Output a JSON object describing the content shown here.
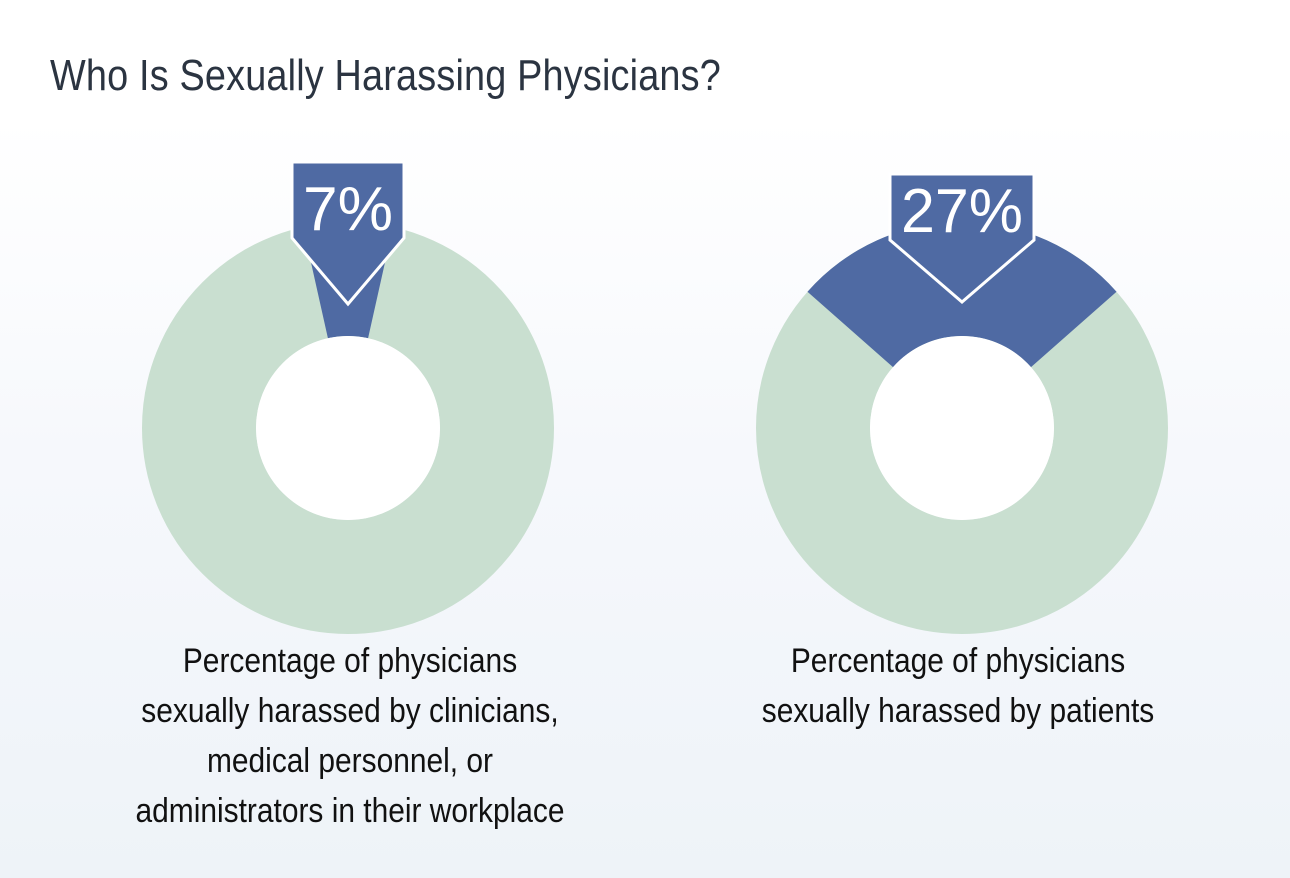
{
  "header": {
    "title": "Who Is Sexually Harassing Physicians?"
  },
  "colors": {
    "highlight": "#4f6aa3",
    "remainder": "#c9dfd0",
    "hole": "#ffffff",
    "label_text": "#ffffff",
    "title_text": "#2b3441",
    "caption_text": "#111111"
  },
  "chart_data": [
    {
      "type": "pie",
      "title": "",
      "values": [
        7,
        93
      ],
      "highlight_value": 7,
      "value_label": "7%",
      "caption_lines": [
        "Percentage of physicians",
        "sexually harassed by clinicians,",
        "medical personnel, or",
        "administrators in their workplace"
      ]
    },
    {
      "type": "pie",
      "title": "",
      "values": [
        27,
        73
      ],
      "highlight_value": 27,
      "value_label": "27%",
      "caption_lines": [
        "Percentage of physicians",
        "sexually harassed by patients"
      ]
    }
  ]
}
